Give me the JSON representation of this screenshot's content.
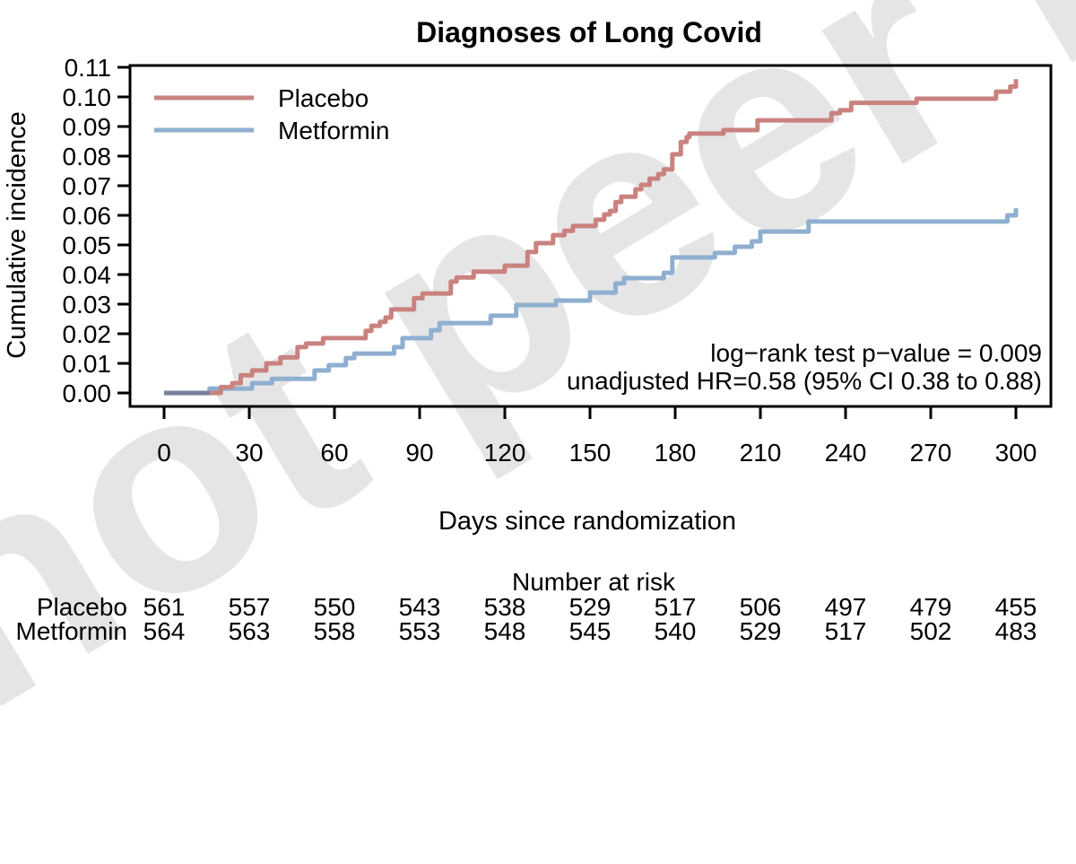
{
  "title": "Diagnoses of Long Covid",
  "watermark": {
    "text": "t not peer review",
    "color": "#e5e5e5"
  },
  "chart_data": {
    "type": "line",
    "subtype": "kaplan-meier-step",
    "title": "Diagnoses of Long Covid",
    "xlabel": "Days since randomization",
    "ylabel": "Cumulative incidence",
    "xlim": [
      0,
      300
    ],
    "ylim": [
      0,
      0.11
    ],
    "x_ticks": [
      0,
      30,
      60,
      90,
      120,
      150,
      180,
      210,
      240,
      270,
      300
    ],
    "y_ticks": [
      "0.00",
      "0.01",
      "0.02",
      "0.03",
      "0.04",
      "0.05",
      "0.06",
      "0.07",
      "0.08",
      "0.09",
      "0.10",
      "0.11"
    ],
    "grid": false,
    "legend_position": "top-left-inside",
    "annotations": [
      "log−rank test p−value = 0.009",
      "unadjusted HR=0.58 (95% CI 0.38 to 0.88)"
    ],
    "overlap_color": "#76819e",
    "series": [
      {
        "name": "Placebo",
        "color": "#c9827f",
        "steps": [
          [
            0,
            0
          ],
          [
            20,
            0.002
          ],
          [
            24,
            0.0033
          ],
          [
            27,
            0.006
          ],
          [
            31,
            0.0076
          ],
          [
            36,
            0.01
          ],
          [
            41,
            0.012
          ],
          [
            47,
            0.0155
          ],
          [
            50,
            0.0167
          ],
          [
            56,
            0.0185
          ],
          [
            71,
            0.021
          ],
          [
            73,
            0.0227
          ],
          [
            76,
            0.024
          ],
          [
            78,
            0.0255
          ],
          [
            80,
            0.0282
          ],
          [
            88,
            0.032
          ],
          [
            91,
            0.0336
          ],
          [
            101,
            0.0376
          ],
          [
            103,
            0.039
          ],
          [
            109,
            0.041
          ],
          [
            120,
            0.043
          ],
          [
            128,
            0.0476
          ],
          [
            131,
            0.0506
          ],
          [
            137,
            0.0533
          ],
          [
            141,
            0.0548
          ],
          [
            144,
            0.0564
          ],
          [
            152,
            0.0585
          ],
          [
            155,
            0.0603
          ],
          [
            157,
            0.0615
          ],
          [
            159,
            0.0645
          ],
          [
            161,
            0.0663
          ],
          [
            166,
            0.0688
          ],
          [
            168,
            0.0703
          ],
          [
            171,
            0.0724
          ],
          [
            174,
            0.0739
          ],
          [
            176,
            0.0755
          ],
          [
            179,
            0.0806
          ],
          [
            182,
            0.0848
          ],
          [
            184,
            0.0864
          ],
          [
            185,
            0.0876
          ],
          [
            197,
            0.0888
          ],
          [
            209,
            0.0921
          ],
          [
            235,
            0.0945
          ],
          [
            238,
            0.0955
          ],
          [
            242,
            0.098
          ],
          [
            265,
            0.0994
          ],
          [
            293,
            0.1018
          ],
          [
            298,
            0.1035
          ],
          [
            300,
            0.106
          ]
        ]
      },
      {
        "name": "Metformin",
        "color": "#8fafd0",
        "steps": [
          [
            0,
            0
          ],
          [
            16,
            0.0015
          ],
          [
            31,
            0.0033
          ],
          [
            38,
            0.0048
          ],
          [
            53,
            0.0076
          ],
          [
            58,
            0.0094
          ],
          [
            64,
            0.0118
          ],
          [
            67,
            0.0133
          ],
          [
            81,
            0.0155
          ],
          [
            84,
            0.0185
          ],
          [
            94,
            0.0212
          ],
          [
            97,
            0.0236
          ],
          [
            115,
            0.0261
          ],
          [
            124,
            0.0297
          ],
          [
            138,
            0.0312
          ],
          [
            150,
            0.0339
          ],
          [
            159,
            0.037
          ],
          [
            162,
            0.0388
          ],
          [
            176,
            0.0406
          ],
          [
            179,
            0.0458
          ],
          [
            194,
            0.0473
          ],
          [
            201,
            0.0494
          ],
          [
            207,
            0.0512
          ],
          [
            210,
            0.0545
          ],
          [
            227,
            0.0579
          ],
          [
            297,
            0.06
          ],
          [
            300,
            0.0624
          ]
        ]
      }
    ]
  },
  "risk_table": {
    "header": "Number at risk",
    "times": [
      0,
      30,
      60,
      90,
      120,
      150,
      180,
      210,
      240,
      270,
      300
    ],
    "rows": [
      {
        "label": "Placebo",
        "color": "#c9827f",
        "values": [
          561,
          557,
          550,
          543,
          538,
          529,
          517,
          506,
          497,
          479,
          455
        ]
      },
      {
        "label": "Metformin",
        "color": "#8fafd0",
        "values": [
          564,
          563,
          558,
          553,
          548,
          545,
          540,
          529,
          517,
          502,
          483
        ]
      }
    ]
  }
}
